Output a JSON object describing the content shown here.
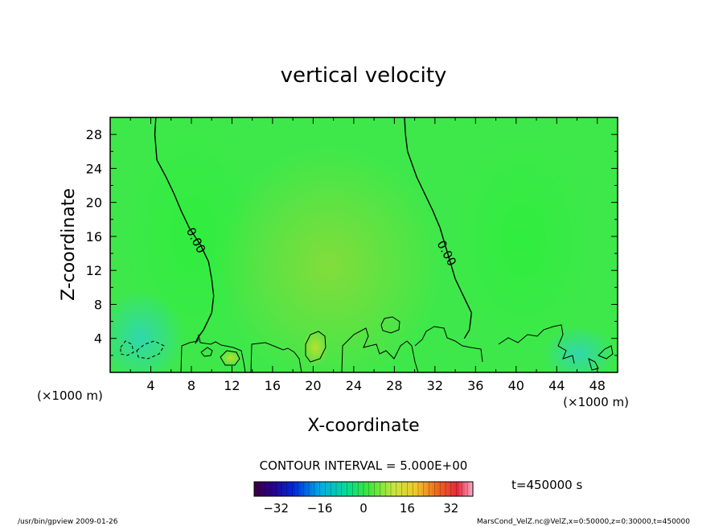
{
  "chart_data": {
    "type": "heatmap",
    "title": "vertical velocity",
    "xlabel": "X-coordinate",
    "ylabel": "Z-coordinate",
    "x_unit_left": "(×1000 m)",
    "x_unit_right": "(×1000 m)",
    "xlim": [
      0,
      50
    ],
    "ylim": [
      0,
      30
    ],
    "xticks": [
      "4",
      "8",
      "12",
      "16",
      "20",
      "24",
      "28",
      "32",
      "36",
      "40",
      "44",
      "48"
    ],
    "xtick_values": [
      4,
      8,
      12,
      16,
      20,
      24,
      28,
      32,
      36,
      40,
      44,
      48
    ],
    "yticks": [
      "4",
      "8",
      "12",
      "16",
      "20",
      "24",
      "28"
    ],
    "ytick_values": [
      4,
      8,
      12,
      16,
      20,
      24,
      28
    ],
    "contour_labels": [
      {
        "text": "0.00",
        "x": 8.1,
        "y": 15.3
      },
      {
        "text": "0.00",
        "x": 32.8,
        "y": 13.8
      }
    ],
    "contour_lines": [
      {
        "level": 0.0,
        "style": "solid",
        "x": [
          4.5,
          4.4,
          4.6,
          5.5,
          6.3,
          7.0,
          7.8,
          8.9,
          9.7,
          10.0,
          10.2,
          10.0,
          9.2,
          8.6,
          8.4
        ],
        "y": [
          30.0,
          28.0,
          25.0,
          23.0,
          21.0,
          19.0,
          17.0,
          15.0,
          13.0,
          11.0,
          9.0,
          7.0,
          5.0,
          4.0,
          3.4
        ]
      },
      {
        "level": 0.0,
        "style": "solid",
        "x": [
          29.0,
          29.1,
          29.3,
          30.2,
          31.0,
          31.8,
          32.5,
          33.0,
          33.5,
          34.0,
          34.8,
          35.6,
          35.4,
          34.9
        ],
        "y": [
          30.0,
          28.0,
          26.0,
          23.0,
          21.0,
          19.0,
          17.0,
          15.0,
          13.0,
          11.0,
          9.0,
          7.0,
          5.0,
          4.0
        ]
      }
    ],
    "interval_label": "CONTOUR INTERVAL = 5.000E+00",
    "time_label": "t=450000 s",
    "colorbar": {
      "ticks": [
        "−32",
        "−16",
        "0",
        "16",
        "32"
      ],
      "tick_values": [
        -32,
        -16,
        0,
        16,
        32
      ],
      "range": [
        -40,
        40
      ]
    },
    "grid": false
  },
  "footer": {
    "left": "/usr/bin/gpview   2009-01-26",
    "right": "MarsCond_VelZ.nc@VelZ,x=0:50000,z=0:30000,t=450000"
  },
  "colors": {
    "field_base": "#3ee84a",
    "field_center": "#7cde3c",
    "field_blue": "#33d8b0",
    "contour": "#000000"
  }
}
